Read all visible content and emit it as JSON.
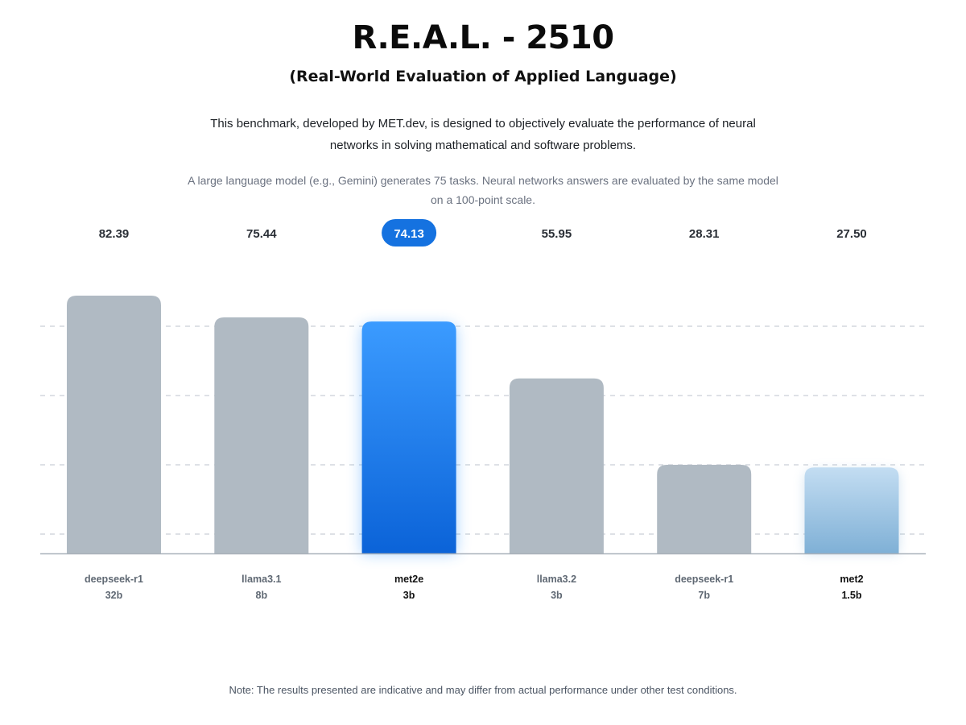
{
  "header": {
    "title": "R.E.A.L. - 2510",
    "subtitle": "(Real-World Evaluation of Applied Language)",
    "description": "This benchmark, developed by MET.dev, is designed to objectively evaluate the performance of neural networks in solving mathematical and software problems.",
    "method": "A large language model (e.g., Gemini) generates 75 tasks. Neural networks answers are evaluated by the same model on a 100-point scale."
  },
  "footer": {
    "note": "Note: The results presented are indicative and may differ from actual performance under other test conditions."
  },
  "colors": {
    "bar_default": "#b0bac3",
    "bar_highlight_top": "#3b9bff",
    "bar_highlight_bottom": "#0b63d8",
    "bar_light_top": "#c3ddf2",
    "bar_light_bottom": "#7fb0d6",
    "badge": "#1572e0",
    "grid": "#c9cfd6",
    "axis": "#a9b1ba"
  },
  "chart_data": {
    "type": "bar",
    "title": "",
    "xlabel": "",
    "ylabel": "",
    "grid": true,
    "categories": [
      {
        "name": "deepseek-r1",
        "size": "32b",
        "style": "default",
        "bold": false
      },
      {
        "name": "llama3.1",
        "size": "8b",
        "style": "default",
        "bold": false
      },
      {
        "name": "met2e",
        "size": "3b",
        "style": "highlight",
        "bold": true
      },
      {
        "name": "llama3.2",
        "size": "3b",
        "style": "default",
        "bold": false
      },
      {
        "name": "deepseek-r1",
        "size": "7b",
        "style": "default",
        "bold": false
      },
      {
        "name": "met2",
        "size": "1.5b",
        "style": "light",
        "bold": true
      }
    ],
    "values": [
      82.39,
      75.44,
      74.13,
      55.95,
      28.31,
      27.5
    ],
    "value_labels": [
      "82.39",
      "75.44",
      "74.13",
      "55.95",
      "28.31",
      "27.50"
    ],
    "highlighted_value_index": 2
  }
}
